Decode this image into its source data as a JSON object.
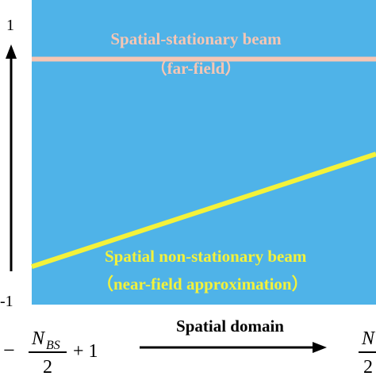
{
  "colors": {
    "panel_bg": "#4fb3e8",
    "stationary_line": "#f6c6b4",
    "stationary_text": "#f6c6b4",
    "nonstationary_line": "#f4f23a",
    "nonstationary_text": "#f4f23a",
    "axis": "#000000"
  },
  "y_axis": {
    "top_tick": "1",
    "bottom_tick": "-1"
  },
  "stationary": {
    "title": "Spatial-stationary beam",
    "subtitle": "（far-field）",
    "level": 0.74
  },
  "nonstationary": {
    "title": "Spatial non-stationary beam",
    "subtitle": "（near-field approximation）",
    "start_level": -0.79,
    "end_level": 0.04
  },
  "x_axis": {
    "label": "Spatial domain",
    "left_sign": "−",
    "left_numerator": "N",
    "left_subscript": "BS",
    "left_denominator": "2",
    "left_suffix": "+ 1",
    "right_numerator": "N",
    "right_denominator": "2"
  }
}
